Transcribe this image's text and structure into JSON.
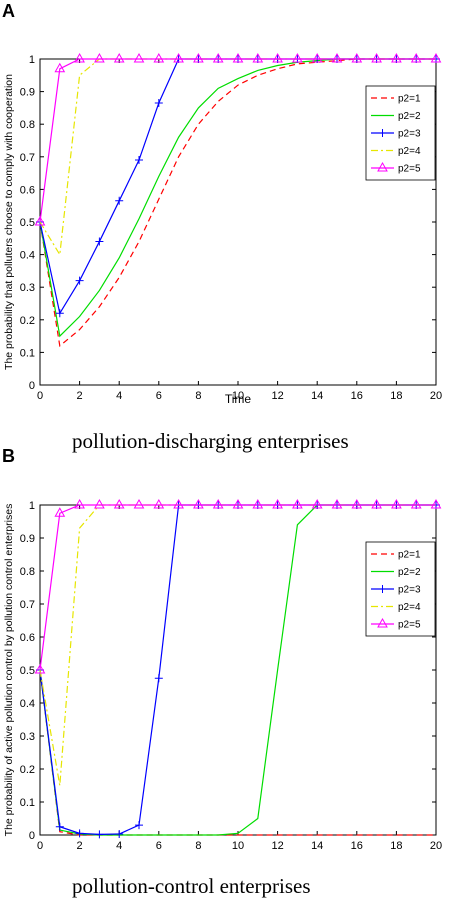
{
  "chart_data": [
    {
      "type": "line",
      "panel_label": "A",
      "caption": "pollution-discharging enterprises",
      "xlabel": "Time",
      "ylabel": "The probability that polluters choose to comply with cooperation",
      "xlim": [
        0,
        20
      ],
      "ylim": [
        0,
        1
      ],
      "xticks": [
        0,
        2,
        4,
        6,
        8,
        10,
        12,
        14,
        16,
        18,
        20
      ],
      "yticks": [
        0,
        0.1,
        0.2,
        0.3,
        0.4,
        0.5,
        0.6,
        0.7,
        0.8,
        0.9,
        1
      ],
      "legend_position": "top-right",
      "x": [
        0,
        1,
        2,
        3,
        4,
        5,
        6,
        7,
        8,
        9,
        10,
        11,
        12,
        13,
        14,
        15,
        16,
        17,
        18,
        19,
        20
      ],
      "series": [
        {
          "name": "p2=1",
          "color": "#ff0000",
          "style": "dashed",
          "marker": "none",
          "values": [
            0.5,
            0.12,
            0.17,
            0.24,
            0.33,
            0.44,
            0.57,
            0.7,
            0.8,
            0.87,
            0.92,
            0.95,
            0.97,
            0.985,
            0.99,
            0.995,
            1,
            1,
            1,
            1,
            1
          ]
        },
        {
          "name": "p2=2",
          "color": "#00dd00",
          "style": "solid",
          "marker": "none",
          "values": [
            0.5,
            0.15,
            0.21,
            0.29,
            0.39,
            0.51,
            0.64,
            0.76,
            0.85,
            0.91,
            0.94,
            0.965,
            0.98,
            0.99,
            0.995,
            1,
            1,
            1,
            1,
            1,
            1
          ]
        },
        {
          "name": "p2=3",
          "color": "#0000ff",
          "style": "solid",
          "marker": "plus",
          "values": [
            0.5,
            0.22,
            0.32,
            0.44,
            0.565,
            0.69,
            0.865,
            1,
            1,
            1,
            1,
            1,
            1,
            1,
            1,
            1,
            1,
            1,
            1,
            1,
            1
          ]
        },
        {
          "name": "p2=4",
          "color": "#e6e600",
          "style": "dashdot",
          "marker": "none",
          "values": [
            0.5,
            0.4,
            0.95,
            1,
            1,
            1,
            1,
            1,
            1,
            1,
            1,
            1,
            1,
            1,
            1,
            1,
            1,
            1,
            1,
            1,
            1
          ]
        },
        {
          "name": "p2=5",
          "color": "#ff00ff",
          "style": "solid",
          "marker": "triangle",
          "values": [
            0.5,
            0.97,
            1,
            1,
            1,
            1,
            1,
            1,
            1,
            1,
            1,
            1,
            1,
            1,
            1,
            1,
            1,
            1,
            1,
            1,
            1
          ]
        }
      ]
    },
    {
      "type": "line",
      "panel_label": "B",
      "caption": "pollution-control enterprises",
      "xlabel": "",
      "ylabel": "The probability of active pollution control by pollution control enterprises",
      "xlim": [
        0,
        20
      ],
      "ylim": [
        0,
        1
      ],
      "xticks": [
        0,
        2,
        4,
        6,
        8,
        10,
        12,
        14,
        16,
        18,
        20
      ],
      "yticks": [
        0,
        0.1,
        0.2,
        0.3,
        0.4,
        0.5,
        0.6,
        0.7,
        0.8,
        0.9,
        1
      ],
      "legend_position": "top-right",
      "x": [
        0,
        1,
        2,
        3,
        4,
        5,
        6,
        7,
        8,
        9,
        10,
        11,
        12,
        13,
        14,
        15,
        16,
        17,
        18,
        19,
        20
      ],
      "series": [
        {
          "name": "p2=1",
          "color": "#ff0000",
          "style": "dashed",
          "marker": "none",
          "values": [
            0.5,
            0.01,
            0,
            0,
            0,
            0,
            0,
            0,
            0,
            0,
            0,
            0,
            0,
            0,
            0,
            0,
            0,
            0,
            0,
            0,
            0
          ]
        },
        {
          "name": "p2=2",
          "color": "#00dd00",
          "style": "solid",
          "marker": "none",
          "values": [
            0.5,
            0.015,
            0.003,
            0,
            0,
            0,
            0,
            0,
            0,
            0,
            0.005,
            0.05,
            0.5,
            0.94,
            1,
            1,
            1,
            1,
            1,
            1,
            1
          ]
        },
        {
          "name": "p2=3",
          "color": "#0000ff",
          "style": "solid",
          "marker": "plus",
          "values": [
            0.5,
            0.025,
            0.005,
            0.002,
            0.003,
            0.03,
            0.475,
            1,
            1,
            1,
            1,
            1,
            1,
            1,
            1,
            1,
            1,
            1,
            1,
            1,
            1
          ]
        },
        {
          "name": "p2=4",
          "color": "#e6e600",
          "style": "dashdot",
          "marker": "none",
          "values": [
            0.5,
            0.15,
            0.93,
            1,
            1,
            1,
            1,
            1,
            1,
            1,
            1,
            1,
            1,
            1,
            1,
            1,
            1,
            1,
            1,
            1,
            1
          ]
        },
        {
          "name": "p2=5",
          "color": "#ff00ff",
          "style": "solid",
          "marker": "triangle",
          "values": [
            0.5,
            0.975,
            1,
            1,
            1,
            1,
            1,
            1,
            1,
            1,
            1,
            1,
            1,
            1,
            1,
            1,
            1,
            1,
            1,
            1,
            1
          ]
        }
      ]
    }
  ]
}
